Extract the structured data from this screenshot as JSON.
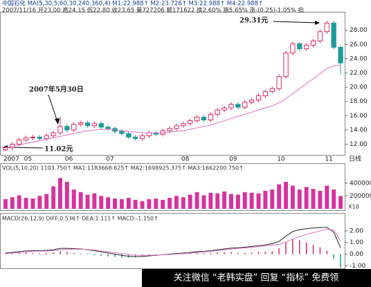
{
  "chart_data": [
    {
      "type": "candlestick",
      "title": "中国石化 MA(5,30,5,60,30,240,360,4) M1:22.988↑ M2:23.726↑ M3:22.988↑ M4:22.988↑",
      "subtitle": "2007/11/16 开23.00 高24.15 低22.80 收23.65 量727206 额171622 换2.60% 振5.65% 涨-(0.25)-1.05% 指",
      "period_label": "日线",
      "annotations": [
        "29.31元",
        "2007年5月30日",
        "11.02元"
      ],
      "categories": [
        "2007",
        null,
        null,
        "05",
        null,
        null,
        null,
        null,
        null,
        "06",
        null,
        null,
        null,
        null,
        null,
        "07",
        null,
        null,
        null,
        null,
        null,
        null,
        null,
        null,
        null,
        null,
        "08",
        null,
        null,
        null,
        null,
        null,
        null,
        "09",
        null,
        null,
        null,
        null,
        null,
        null,
        "10",
        null,
        null,
        null,
        null,
        null,
        null,
        "11",
        null,
        null
      ],
      "open": [
        11.2,
        11.5,
        12.0,
        12.6,
        12.9,
        13.0,
        12.8,
        13.2,
        13.6,
        14.5,
        14.0,
        14.8,
        15.0,
        14.6,
        14.9,
        14.4,
        14.2,
        13.8,
        13.5,
        13.0,
        12.8,
        13.2,
        13.6,
        13.4,
        13.9,
        14.2,
        14.6,
        14.9,
        15.3,
        15.8,
        15.4,
        16.2,
        16.8,
        17.1,
        17.6,
        17.2,
        17.9,
        18.2,
        18.8,
        19.4,
        19.8,
        21.5,
        24.8,
        26.1,
        25.4,
        25.9,
        26.5,
        27.8,
        29.0,
        25.6
      ],
      "close": [
        11.5,
        12.0,
        12.6,
        12.9,
        13.0,
        12.8,
        13.2,
        13.6,
        14.5,
        14.0,
        14.8,
        15.0,
        14.6,
        14.9,
        14.4,
        14.2,
        13.8,
        13.5,
        13.0,
        12.8,
        13.2,
        13.6,
        13.4,
        13.9,
        14.2,
        14.6,
        14.9,
        15.3,
        15.8,
        15.4,
        16.2,
        16.8,
        17.1,
        17.6,
        17.2,
        17.9,
        18.2,
        18.8,
        19.4,
        19.8,
        21.5,
        24.8,
        26.1,
        25.4,
        25.9,
        26.5,
        27.8,
        29.0,
        25.6,
        23.4
      ],
      "high": [
        11.8,
        12.3,
        12.9,
        13.2,
        13.3,
        13.3,
        13.5,
        13.9,
        15.8,
        14.8,
        15.1,
        15.3,
        15.3,
        15.2,
        15.2,
        14.7,
        14.5,
        14.1,
        13.8,
        13.3,
        13.5,
        13.9,
        13.9,
        14.2,
        14.5,
        14.9,
        15.2,
        15.6,
        16.1,
        16.1,
        16.5,
        17.1,
        17.4,
        17.9,
        17.9,
        18.2,
        18.5,
        19.1,
        19.7,
        20.1,
        21.8,
        25.1,
        26.4,
        26.4,
        26.2,
        26.8,
        28.1,
        29.31,
        29.3,
        25.9
      ],
      "low": [
        11.02,
        11.2,
        11.7,
        12.3,
        12.6,
        12.5,
        12.5,
        12.9,
        13.3,
        13.7,
        13.7,
        14.5,
        14.3,
        14.3,
        14.1,
        13.9,
        13.5,
        13.2,
        12.7,
        12.5,
        12.5,
        12.9,
        13.1,
        13.1,
        13.6,
        13.9,
        14.3,
        14.6,
        15.0,
        15.1,
        15.1,
        15.9,
        16.5,
        16.8,
        16.9,
        16.9,
        17.6,
        17.9,
        18.5,
        19.1,
        19.5,
        21.2,
        24.5,
        25.1,
        25.1,
        25.6,
        26.2,
        27.5,
        25.3,
        21.8
      ],
      "up_color": "#e0245e",
      "down_color": "#1f9a9a",
      "series": [
        {
          "color": "#e26fc4",
          "values": [
            11.5,
            11.7,
            11.9,
            12.1,
            12.3,
            12.5,
            12.7,
            12.9,
            13.1,
            13.3,
            13.5,
            13.7,
            13.9,
            14.0,
            14.1,
            14.1,
            14.0,
            13.9,
            13.8,
            13.7,
            13.6,
            13.6,
            13.6,
            13.6,
            13.7,
            13.8,
            13.9,
            14.1,
            14.3,
            14.5,
            14.7,
            15.0,
            15.3,
            15.6,
            15.9,
            16.2,
            16.5,
            16.8,
            17.1,
            17.4,
            17.8,
            18.4,
            19.1,
            19.8,
            20.5,
            21.2,
            21.9,
            22.6,
            23.0,
            23.1
          ]
        }
      ],
      "ylim": [
        10.5,
        30.3
      ],
      "yticks": [
        {
          "value": 12,
          "label": "12.00"
        },
        {
          "value": 14,
          "label": "14.00"
        },
        {
          "value": 16,
          "label": "16.00"
        },
        {
          "value": 18,
          "label": "18.00"
        },
        {
          "value": 20,
          "label": "20.00"
        },
        {
          "value": 22,
          "label": "22.00"
        },
        {
          "value": 24,
          "label": "24.00"
        },
        {
          "value": 26,
          "label": "26.00"
        },
        {
          "value": 28,
          "label": "28.00"
        }
      ]
    },
    {
      "type": "bar",
      "title": "VOL(5,10,20) 1103.750↑ MA1:1183668.625↑ MA2:1698925.375↑ MA3:1662200.750↑",
      "unit_label": "X10",
      "color": "#d6339c",
      "values": [
        150000,
        180000,
        210000,
        170000,
        160000,
        200000,
        230000,
        350000,
        480000,
        420000,
        300000,
        260000,
        220000,
        240000,
        200000,
        180000,
        160000,
        150000,
        170000,
        140000,
        120000,
        150000,
        160000,
        140000,
        170000,
        200000,
        180000,
        220000,
        260000,
        210000,
        250000,
        240000,
        270000,
        230000,
        220000,
        260000,
        250000,
        240000,
        280000,
        300000,
        380000,
        420000,
        360000,
        300000,
        340000,
        310000,
        280000,
        360000,
        300000,
        200000
      ],
      "ylim": [
        0,
        580000
      ],
      "yticks": [
        200000,
        400000
      ]
    },
    {
      "type": "macd",
      "title": "MACD(26,12,9) DIFF:0.536↑ DEA:1.111↑ MACD:-1.150↑",
      "up_color": "#e0245e",
      "down_color": "#1f9a9a",
      "values": [
        0.05,
        0.08,
        0.12,
        0.15,
        0.1,
        0.08,
        0.1,
        0.15,
        0.25,
        0.2,
        0.1,
        0.05,
        -0.05,
        -0.1,
        -0.15,
        -0.2,
        -0.25,
        -0.3,
        -0.3,
        -0.25,
        -0.2,
        -0.1,
        -0.05,
        0.02,
        0.05,
        0.08,
        0.1,
        0.12,
        0.15,
        0.1,
        0.12,
        0.15,
        0.15,
        0.18,
        0.1,
        0.12,
        0.15,
        0.18,
        0.2,
        0.25,
        0.5,
        1.0,
        1.3,
        1.2,
        1.0,
        0.8,
        0.6,
        0.3,
        -0.4,
        -1.15
      ],
      "series": [
        {
          "color": "#222222",
          "values": [
            0.1,
            0.15,
            0.22,
            0.28,
            0.3,
            0.3,
            0.32,
            0.38,
            0.5,
            0.5,
            0.48,
            0.45,
            0.38,
            0.3,
            0.2,
            0.1,
            0.0,
            -0.1,
            -0.18,
            -0.22,
            -0.2,
            -0.15,
            -0.1,
            -0.05,
            0.0,
            0.05,
            0.1,
            0.15,
            0.22,
            0.25,
            0.3,
            0.38,
            0.45,
            0.52,
            0.55,
            0.6,
            0.66,
            0.73,
            0.8,
            0.9,
            1.1,
            1.55,
            1.95,
            2.1,
            2.2,
            2.25,
            2.3,
            2.3,
            1.9,
            0.54
          ]
        },
        {
          "color": "#e26fc4",
          "values": [
            0.05,
            0.1,
            0.15,
            0.2,
            0.25,
            0.26,
            0.27,
            0.3,
            0.38,
            0.4,
            0.43,
            0.42,
            0.4,
            0.35,
            0.28,
            0.2,
            0.12,
            0.05,
            -0.03,
            -0.1,
            -0.1,
            -0.1,
            -0.08,
            -0.06,
            -0.03,
            0.01,
            0.05,
            0.09,
            0.14,
            0.2,
            0.24,
            0.3,
            0.37,
            0.43,
            0.5,
            0.54,
            0.59,
            0.64,
            0.7,
            0.78,
            0.85,
            1.05,
            1.3,
            1.5,
            1.7,
            1.85,
            2.0,
            2.15,
            2.1,
            1.11
          ]
        }
      ],
      "ylim": [
        -1.22,
        2.83
      ],
      "yticks": [
        {
          "value": -1,
          "label": "-1.00"
        },
        {
          "value": 0,
          "label": "0.00"
        },
        {
          "value": 1,
          "label": "1.00"
        },
        {
          "value": 2,
          "label": "2.00"
        }
      ]
    }
  ],
  "footer": "关注微信 “老韩实盘” 回复 “指标” 免费领"
}
